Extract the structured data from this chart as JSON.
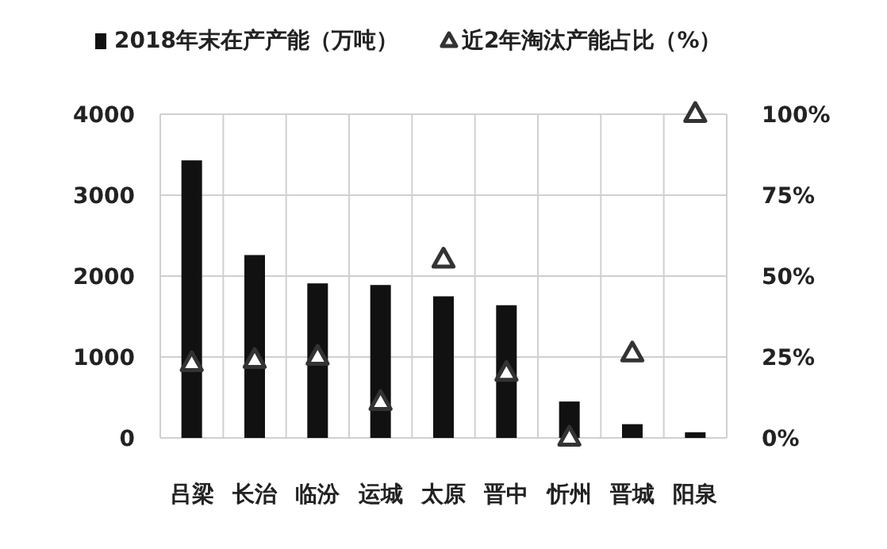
{
  "chart_data": {
    "type": "bar",
    "categories": [
      "吕梁",
      "长治",
      "临汾",
      "运城",
      "太原",
      "晋中",
      "忻州",
      "晋城",
      "阳泉"
    ],
    "series": [
      {
        "name": "2018年末在产产能（万吨）",
        "color": "#111111",
        "values": [
          3430,
          2260,
          1910,
          1890,
          1750,
          1640,
          450,
          170,
          70
        ]
      },
      {
        "name": "近2年淘汰产能占比（%）",
        "color": "#333333",
        "type": "scatter",
        "axis": "y2",
        "marker": "triangle",
        "values": [
          23,
          24,
          25,
          11,
          55,
          20,
          0,
          26,
          100
        ]
      }
    ],
    "ylim": [
      0,
      4000
    ],
    "yticks": [
      0,
      1000,
      2000,
      3000,
      4000
    ],
    "y2lim": [
      0,
      100
    ],
    "y2ticks": [
      {
        "value": 0,
        "label": "0%"
      },
      {
        "value": 25,
        "label": "25%"
      },
      {
        "value": 50,
        "label": "50%"
      },
      {
        "value": 75,
        "label": "75%"
      },
      {
        "value": 100,
        "label": "100%"
      }
    ],
    "grid": true,
    "legend": "top"
  }
}
